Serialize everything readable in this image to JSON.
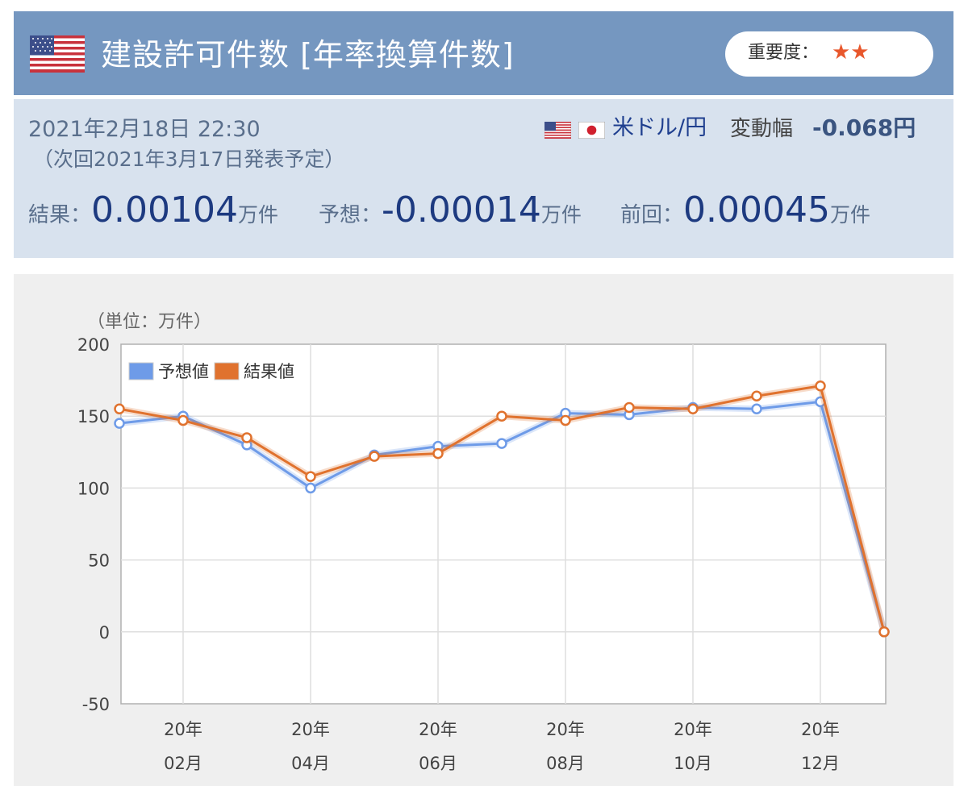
{
  "header": {
    "title": "建設許可件数 [年率換算件数]",
    "flag_icon": "us-flag-icon",
    "importance_label": "重要度：",
    "importance_stars": "★★",
    "importance_level": 2,
    "bar_color": "#7597c0"
  },
  "info": {
    "datetime": "2021年2月18日 22:30",
    "next_release": "（次回2021年3月17日発表予定）",
    "pair": "米ドル/円",
    "range_label": "変動幅",
    "range_value": "-0.068円",
    "result_label": "結果：",
    "result_value": "0.00104",
    "forecast_label": "予想：",
    "forecast_value": "-0.00014",
    "previous_label": "前回：",
    "previous_value": "0.00045",
    "unit": "万件"
  },
  "chart_data": {
    "type": "line",
    "unit_label": "（単位：万件）",
    "ylim": [
      -50,
      200
    ],
    "yticks": [
      -50,
      0,
      50,
      100,
      150,
      200
    ],
    "x_tick_labels": [
      {
        "index": 1,
        "year": "20年",
        "month": "02月"
      },
      {
        "index": 3,
        "year": "20年",
        "month": "04月"
      },
      {
        "index": 5,
        "year": "20年",
        "month": "06月"
      },
      {
        "index": 7,
        "year": "20年",
        "month": "08月"
      },
      {
        "index": 9,
        "year": "20年",
        "month": "10月"
      },
      {
        "index": 11,
        "year": "20年",
        "month": "12月"
      }
    ],
    "grid": true,
    "legend_position": "top-left",
    "series": [
      {
        "name": "予想値",
        "color": "#6e9be8",
        "values": [
          145,
          150,
          130,
          100,
          123,
          129,
          131,
          152,
          151,
          156,
          155,
          160,
          0
        ]
      },
      {
        "name": "結果値",
        "color": "#e0722e",
        "values": [
          155,
          147,
          135,
          108,
          122,
          124,
          150,
          147,
          156,
          155,
          164,
          171,
          0
        ]
      }
    ]
  }
}
